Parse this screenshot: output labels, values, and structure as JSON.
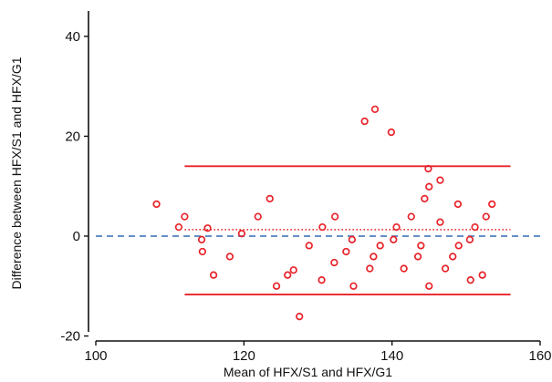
{
  "chart_data": {
    "type": "scatter",
    "xlabel": "Mean of HFX/S1 and HFX/G1",
    "ylabel": "Difference between HFX/S1 and HFX/G1",
    "xlim": [
      100,
      160
    ],
    "ylim": [
      -21,
      44
    ],
    "x_ticks": [
      100,
      120,
      140,
      160
    ],
    "y_ticks": [
      -20,
      0,
      20,
      40
    ],
    "x_tick_labels": [
      "100",
      "120",
      "140",
      "160"
    ],
    "y_tick_labels": [
      "-20",
      "0",
      "20",
      "40"
    ],
    "grid": false,
    "legend": "none",
    "colors": {
      "points": "#e8232a",
      "limits": "#e8232a",
      "mean_line": "#e8232a",
      "zero_line": "#4f81bd",
      "axes": "#111111"
    },
    "reference_lines": [
      {
        "kind": "zero",
        "y": 0,
        "x_range": [
          100,
          160
        ],
        "style": "dashed"
      },
      {
        "kind": "mean-difference",
        "y": 1.3,
        "x_range": [
          112,
          156
        ],
        "style": "dotted"
      },
      {
        "kind": "upper-limit",
        "y": 14,
        "x_range": [
          112,
          156
        ],
        "style": "solid"
      },
      {
        "kind": "lower-limit",
        "y": -11.7,
        "x_range": [
          112,
          156
        ],
        "style": "solid"
      }
    ],
    "points": [
      {
        "x": 108.2,
        "y": 6.4
      },
      {
        "x": 111.2,
        "y": 1.8
      },
      {
        "x": 112.0,
        "y": 3.9
      },
      {
        "x": 114.3,
        "y": -0.7
      },
      {
        "x": 114.4,
        "y": -3.1
      },
      {
        "x": 115.1,
        "y": 1.6
      },
      {
        "x": 115.9,
        "y": -7.8
      },
      {
        "x": 118.1,
        "y": -4.1
      },
      {
        "x": 119.7,
        "y": 0.5
      },
      {
        "x": 121.9,
        "y": 3.9
      },
      {
        "x": 123.5,
        "y": 7.5
      },
      {
        "x": 124.4,
        "y": -10.0
      },
      {
        "x": 125.9,
        "y": -7.8
      },
      {
        "x": 126.7,
        "y": -6.8
      },
      {
        "x": 127.5,
        "y": -16.1
      },
      {
        "x": 128.8,
        "y": -1.9
      },
      {
        "x": 130.5,
        "y": -8.8
      },
      {
        "x": 130.6,
        "y": 1.8
      },
      {
        "x": 132.2,
        "y": -5.3
      },
      {
        "x": 132.3,
        "y": 3.9
      },
      {
        "x": 133.8,
        "y": -3.1
      },
      {
        "x": 134.6,
        "y": -0.7
      },
      {
        "x": 134.8,
        "y": -10.0
      },
      {
        "x": 136.3,
        "y": 23.0
      },
      {
        "x": 137.0,
        "y": -6.5
      },
      {
        "x": 137.5,
        "y": -4.1
      },
      {
        "x": 137.7,
        "y": 25.4
      },
      {
        "x": 138.4,
        "y": -1.9
      },
      {
        "x": 139.9,
        "y": 20.8
      },
      {
        "x": 140.2,
        "y": -0.7
      },
      {
        "x": 140.6,
        "y": 1.8
      },
      {
        "x": 141.6,
        "y": -6.5
      },
      {
        "x": 142.6,
        "y": 3.9
      },
      {
        "x": 143.5,
        "y": -4.1
      },
      {
        "x": 143.9,
        "y": -1.9
      },
      {
        "x": 144.4,
        "y": 7.5
      },
      {
        "x": 144.9,
        "y": 13.5
      },
      {
        "x": 145.0,
        "y": 9.9
      },
      {
        "x": 145.0,
        "y": -10.0
      },
      {
        "x": 146.5,
        "y": 11.2
      },
      {
        "x": 146.5,
        "y": 2.8
      },
      {
        "x": 147.2,
        "y": -6.5
      },
      {
        "x": 148.2,
        "y": -4.1
      },
      {
        "x": 148.9,
        "y": 6.4
      },
      {
        "x": 149.0,
        "y": -1.9
      },
      {
        "x": 150.5,
        "y": -0.7
      },
      {
        "x": 150.6,
        "y": -8.8
      },
      {
        "x": 151.2,
        "y": 1.8
      },
      {
        "x": 152.2,
        "y": -7.8
      },
      {
        "x": 152.7,
        "y": 3.9
      },
      {
        "x": 153.5,
        "y": 6.4
      }
    ]
  }
}
